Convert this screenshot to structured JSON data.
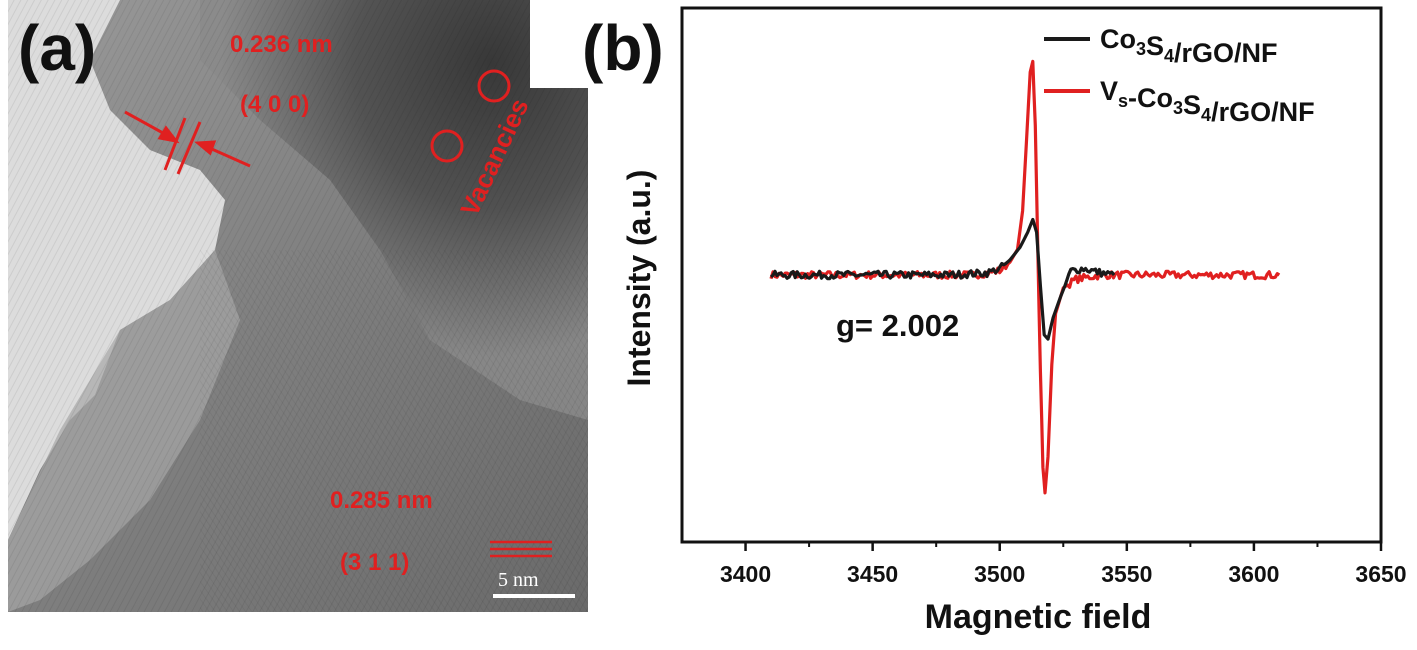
{
  "panel_a": {
    "label": "(a)",
    "annotations": {
      "spacing_top": "0.236 nm",
      "plane_top": "(4 0 0)",
      "vacancies": "Vacancies",
      "spacing_bottom": "0.285 nm",
      "plane_bottom": "(3 1 1)",
      "scale_bar": "5 nm"
    },
    "colors": {
      "annotation": "#e02020"
    }
  },
  "panel_b": {
    "label": "(b)",
    "annotation": "g= 2.002"
  },
  "chart_data": {
    "type": "line",
    "xlabel": "Magnetic field",
    "ylabel": "Intensity (a.u.)",
    "xlim": [
      3375,
      3650
    ],
    "ylim": [
      -1.25,
      1.25
    ],
    "xticks": [
      3400,
      3450,
      3500,
      3550,
      3600,
      3650
    ],
    "xtick_labels": [
      "3400",
      "3450",
      "3500",
      "3550",
      "3600",
      "3650"
    ],
    "yticks_labeled": false,
    "legend_placement": "top-right",
    "series": [
      {
        "name": "Co3S4/rGO/NF",
        "color": "#1a1a1a",
        "x": [
          3410,
          3480,
          3495,
          3500,
          3504,
          3508,
          3511,
          3513,
          3514.5,
          3516,
          3517.5,
          3519,
          3521,
          3524,
          3528,
          3533,
          3540,
          3545
        ],
        "y": [
          0.0,
          0.0,
          0.01,
          0.03,
          0.07,
          0.13,
          0.2,
          0.26,
          0.2,
          -0.05,
          -0.28,
          -0.3,
          -0.2,
          -0.1,
          0.02,
          0.03,
          0.01,
          0.0
        ]
      },
      {
        "name": "Vs-Co3S4/rGO/NF",
        "color": "#e02020",
        "x": [
          3410,
          3490,
          3500,
          3504,
          3507,
          3509,
          3510.5,
          3512,
          3513,
          3514,
          3515,
          3516,
          3517,
          3517.8,
          3519,
          3520.5,
          3522,
          3525,
          3530,
          3540,
          3610
        ],
        "y": [
          0.0,
          0.0,
          0.02,
          0.06,
          0.12,
          0.3,
          0.62,
          0.95,
          1.0,
          0.7,
          0.1,
          -0.45,
          -0.9,
          -1.02,
          -0.85,
          -0.42,
          -0.18,
          -0.06,
          -0.02,
          0.0,
          0.0
        ]
      }
    ],
    "legend": [
      {
        "name_main": "Co",
        "sub1": "3",
        "mid": "S",
        "sub2": "4",
        "tail": "/rGO/NF",
        "prefix": "",
        "prefix_sub": ""
      },
      {
        "name_main": "-Co",
        "sub1": "3",
        "mid": "S",
        "sub2": "4",
        "tail": "/rGO/NF",
        "prefix": "V",
        "prefix_sub": "s"
      }
    ]
  }
}
